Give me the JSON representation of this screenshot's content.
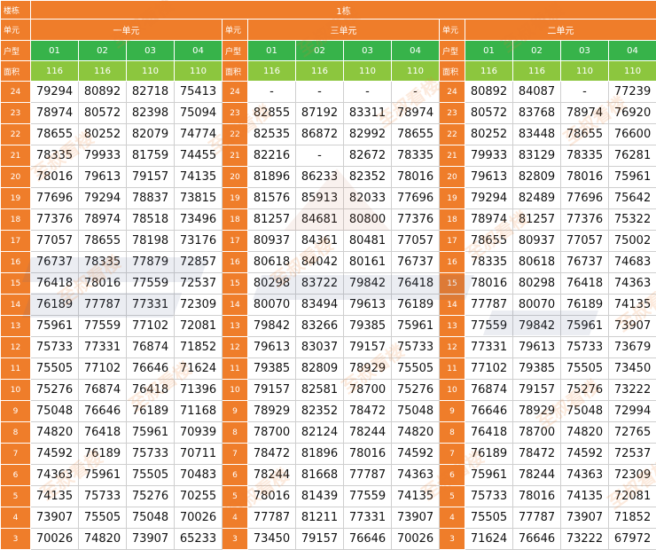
{
  "building": {
    "label": "楼栋",
    "name": "1栋"
  },
  "unit_label": "单元",
  "units": [
    "一单元",
    "三单元",
    "二单元"
  ],
  "type_label": "户型",
  "types": [
    "01",
    "02",
    "03",
    "04"
  ],
  "area_label": "面积",
  "areas": [
    "116",
    "116",
    "110",
    "110"
  ],
  "rows": [
    {
      "floor": "24",
      "a": [
        "79294",
        "80892",
        "82718",
        "75413"
      ],
      "b": [
        "-",
        "-",
        "-",
        "-"
      ],
      "c": [
        "80892",
        "84087",
        "-",
        "77239"
      ]
    },
    {
      "floor": "23",
      "a": [
        "78974",
        "80572",
        "82398",
        "75094"
      ],
      "b": [
        "82855",
        "87192",
        "83311",
        "78974"
      ],
      "c": [
        "80572",
        "83768",
        "78974",
        "76920"
      ]
    },
    {
      "floor": "22",
      "a": [
        "78655",
        "80252",
        "82079",
        "74774"
      ],
      "b": [
        "82535",
        "86872",
        "82992",
        "78655"
      ],
      "c": [
        "80252",
        "83448",
        "78655",
        "76600"
      ]
    },
    {
      "floor": "21",
      "a": [
        "78335",
        "79933",
        "81759",
        "74455"
      ],
      "b": [
        "82216",
        "-",
        "82672",
        "78335"
      ],
      "c": [
        "79933",
        "83129",
        "78335",
        "76281"
      ]
    },
    {
      "floor": "20",
      "a": [
        "78016",
        "79613",
        "79157",
        "74135"
      ],
      "b": [
        "81896",
        "86233",
        "82352",
        "78016"
      ],
      "c": [
        "79613",
        "82809",
        "78016",
        "75961"
      ]
    },
    {
      "floor": "19",
      "a": [
        "77696",
        "79294",
        "78837",
        "73815"
      ],
      "b": [
        "81576",
        "85913",
        "82033",
        "77696"
      ],
      "c": [
        "79294",
        "82489",
        "77696",
        "75642"
      ]
    },
    {
      "floor": "18",
      "a": [
        "77376",
        "78974",
        "78518",
        "73496"
      ],
      "b": [
        "81257",
        "84681",
        "80800",
        "77376"
      ],
      "c": [
        "78974",
        "81257",
        "77376",
        "75322"
      ]
    },
    {
      "floor": "17",
      "a": [
        "77057",
        "78655",
        "78198",
        "73176"
      ],
      "b": [
        "80937",
        "84361",
        "80481",
        "77057"
      ],
      "c": [
        "78655",
        "80937",
        "77057",
        "75002"
      ]
    },
    {
      "floor": "16",
      "a": [
        "76737",
        "78335",
        "77879",
        "72857"
      ],
      "b": [
        "80618",
        "84042",
        "80161",
        "76737"
      ],
      "c": [
        "78335",
        "80618",
        "76737",
        "74683"
      ]
    },
    {
      "floor": "15",
      "a": [
        "76418",
        "78016",
        "77559",
        "72537"
      ],
      "b": [
        "80298",
        "83722",
        "79842",
        "76418"
      ],
      "c": [
        "78016",
        "80298",
        "76418",
        "74363"
      ]
    },
    {
      "floor": "14",
      "a": [
        "76189",
        "77787",
        "77331",
        "72309"
      ],
      "b": [
        "80070",
        "83494",
        "79613",
        "76189"
      ],
      "c": [
        "77787",
        "80070",
        "76189",
        "74135"
      ]
    },
    {
      "floor": "13",
      "a": [
        "75961",
        "77559",
        "77102",
        "72081"
      ],
      "b": [
        "79842",
        "83266",
        "79385",
        "75961"
      ],
      "c": [
        "77559",
        "79842",
        "75961",
        "73907"
      ]
    },
    {
      "floor": "12",
      "a": [
        "75733",
        "77331",
        "76874",
        "71852"
      ],
      "b": [
        "79613",
        "83037",
        "79157",
        "75733"
      ],
      "c": [
        "77331",
        "79613",
        "75733",
        "73679"
      ]
    },
    {
      "floor": "11",
      "a": [
        "75505",
        "77102",
        "76646",
        "71624"
      ],
      "b": [
        "79385",
        "82809",
        "78929",
        "75505"
      ],
      "c": [
        "77102",
        "79385",
        "75505",
        "73450"
      ]
    },
    {
      "floor": "10",
      "a": [
        "75276",
        "76874",
        "76418",
        "71396"
      ],
      "b": [
        "79157",
        "82581",
        "78700",
        "75276"
      ],
      "c": [
        "76874",
        "79157",
        "75276",
        "73222"
      ]
    },
    {
      "floor": "9",
      "a": [
        "75048",
        "76646",
        "76189",
        "71168"
      ],
      "b": [
        "78929",
        "82352",
        "78472",
        "75048"
      ],
      "c": [
        "76646",
        "78929",
        "75048",
        "72994"
      ]
    },
    {
      "floor": "8",
      "a": [
        "74820",
        "76418",
        "75961",
        "70939"
      ],
      "b": [
        "78700",
        "82124",
        "78244",
        "74820"
      ],
      "c": [
        "76418",
        "78700",
        "74820",
        "72765"
      ]
    },
    {
      "floor": "7",
      "a": [
        "74592",
        "76189",
        "75733",
        "70711"
      ],
      "b": [
        "78472",
        "81896",
        "78016",
        "74592"
      ],
      "c": [
        "76189",
        "78472",
        "74592",
        "72537"
      ]
    },
    {
      "floor": "6",
      "a": [
        "74363",
        "75961",
        "75505",
        "70483"
      ],
      "b": [
        "78244",
        "81668",
        "77787",
        "74363"
      ],
      "c": [
        "75961",
        "78244",
        "74363",
        "72309"
      ]
    },
    {
      "floor": "5",
      "a": [
        "74135",
        "75733",
        "75276",
        "70255"
      ],
      "b": [
        "78016",
        "81439",
        "77559",
        "74135"
      ],
      "c": [
        "75733",
        "78016",
        "74135",
        "72081"
      ]
    },
    {
      "floor": "4",
      "a": [
        "73907",
        "75505",
        "75048",
        "70026"
      ],
      "b": [
        "77787",
        "81211",
        "77331",
        "73907"
      ],
      "c": [
        "75505",
        "77787",
        "73907",
        "71852"
      ]
    },
    {
      "floor": "3",
      "a": [
        "70026",
        "74820",
        "73907",
        "65233"
      ],
      "b": [
        "73450",
        "79157",
        "76646",
        "70026"
      ],
      "c": [
        "71624",
        "76646",
        "73222",
        "67972"
      ]
    }
  ]
}
